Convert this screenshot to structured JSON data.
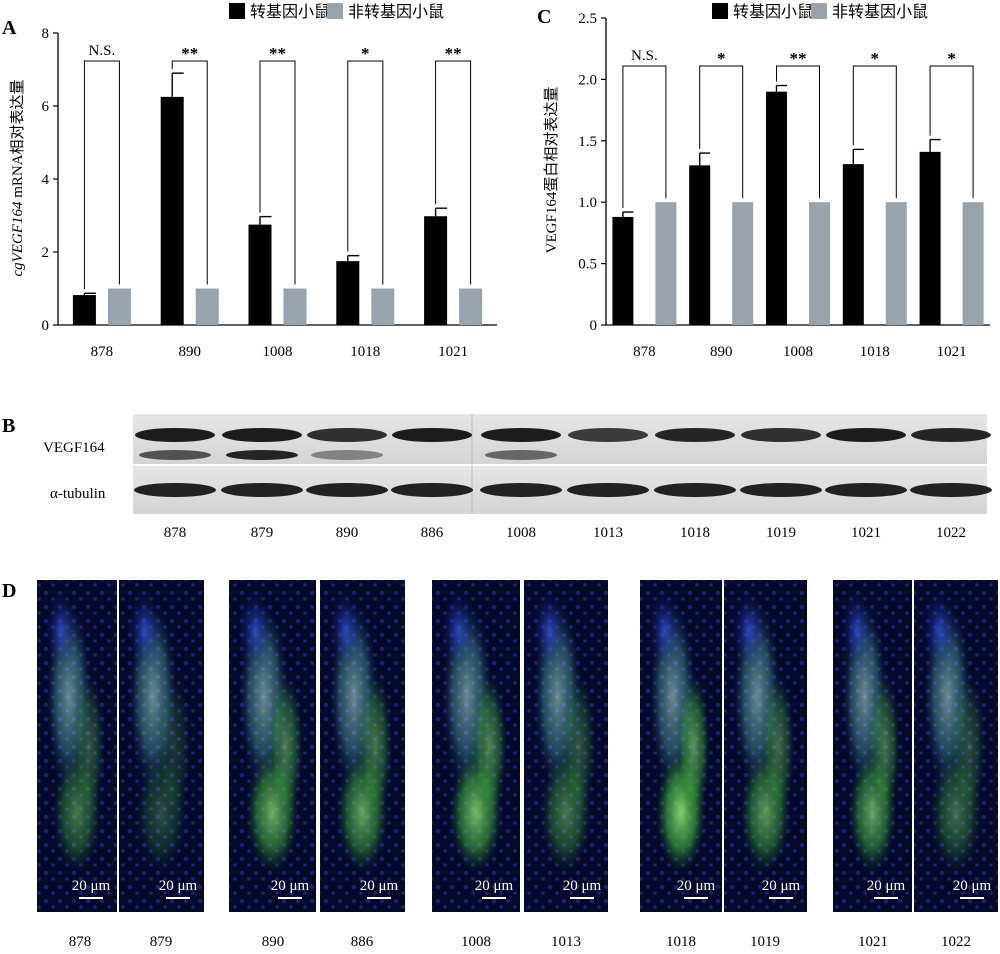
{
  "legend": {
    "transgenic": "转基因小鼠",
    "nontransgenic": "非转基因小鼠"
  },
  "colors": {
    "transgenic": "#000000",
    "nontransgenic": "#98a3ab"
  },
  "panels": {
    "A": "A",
    "B": "B",
    "C": "C",
    "D": "D"
  },
  "panel_a": {
    "ylabel_italic": "cgVEGF164",
    "ylabel_rest": " mRNA相对表达量"
  },
  "panel_b": {
    "row_labels": [
      "VEGF164",
      "α-tubulin"
    ],
    "lanes": [
      "878",
      "879",
      "890",
      "886",
      "1008",
      "1013",
      "1018",
      "1019",
      "1021",
      "1022"
    ]
  },
  "panel_d": {
    "sample_labels": [
      "878",
      "879",
      "890",
      "886",
      "1008",
      "1013",
      "1018",
      "1019",
      "1021",
      "1022"
    ],
    "scale_bar": "20 μm"
  },
  "chart_data": [
    {
      "type": "bar",
      "panel": "A",
      "categories": [
        "878",
        "890",
        "1008",
        "1018",
        "1021"
      ],
      "series": [
        {
          "name": "转基因小鼠",
          "values": [
            0.82,
            6.25,
            2.75,
            1.75,
            2.98
          ],
          "errors": [
            0.05,
            0.65,
            0.22,
            0.15,
            0.22
          ]
        },
        {
          "name": "非转基因小鼠",
          "values": [
            1.0,
            1.0,
            1.0,
            1.0,
            1.0
          ],
          "errors": [
            0,
            0,
            0,
            0,
            0
          ]
        }
      ],
      "significance": [
        "N.S.",
        "**",
        "**",
        "*",
        "**"
      ],
      "ylim": [
        0,
        8
      ],
      "yticks": [
        0,
        2,
        4,
        6,
        8
      ]
    },
    {
      "type": "bar",
      "panel": "C",
      "categories": [
        "878",
        "890",
        "1008",
        "1018",
        "1021"
      ],
      "series": [
        {
          "name": "转基因小鼠",
          "values": [
            0.88,
            1.3,
            1.9,
            1.31,
            1.41
          ],
          "errors": [
            0.04,
            0.1,
            0.05,
            0.12,
            0.1
          ]
        },
        {
          "name": "非转基因小鼠",
          "values": [
            1.0,
            1.0,
            1.0,
            1.0,
            1.0
          ],
          "errors": [
            0,
            0,
            0,
            0,
            0
          ]
        }
      ],
      "significance": [
        "N.S.",
        "*",
        "**",
        "*",
        "*"
      ],
      "ylabel": "VEGF164蛋白相对表达量",
      "ylim": [
        0,
        2.5
      ],
      "yticks": [
        0,
        0.5,
        1.0,
        1.5,
        2.0,
        2.5
      ],
      "ytick_labels": [
        "0",
        "0.5",
        "1.0",
        "1.5",
        "2.0",
        "2.5"
      ]
    }
  ]
}
